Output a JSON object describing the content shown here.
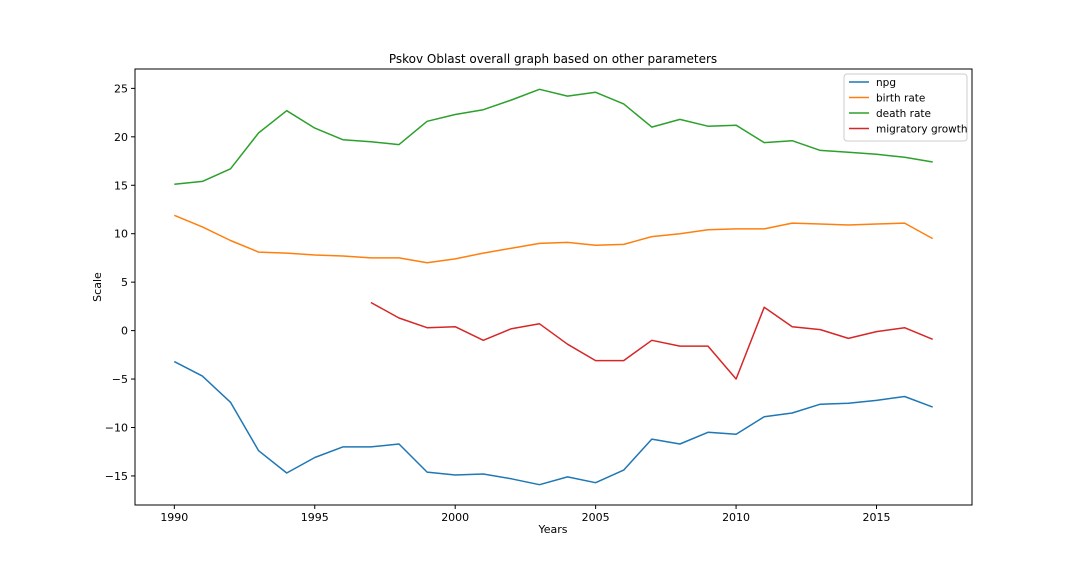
{
  "chart_data": {
    "type": "line",
    "title": "Pskov Oblast overall graph based on other parameters",
    "xlabel": "Years",
    "ylabel": "Scale",
    "xlim": [
      1988.6,
      2018.4
    ],
    "ylim": [
      -18,
      27
    ],
    "xticks": [
      1990,
      1995,
      2000,
      2005,
      2010,
      2015
    ],
    "yticks": [
      -15,
      -10,
      -5,
      0,
      5,
      10,
      15,
      20,
      25
    ],
    "grid": false,
    "legend_position": "top-right",
    "x": [
      1990,
      1991,
      1992,
      1993,
      1994,
      1995,
      1996,
      1997,
      1998,
      1999,
      2000,
      2001,
      2002,
      2003,
      2004,
      2005,
      2006,
      2007,
      2008,
      2009,
      2010,
      2011,
      2012,
      2013,
      2014,
      2015,
      2016,
      2017
    ],
    "series": [
      {
        "name": "npg",
        "color": "#1f77b4",
        "values": [
          -3.2,
          -4.7,
          -7.4,
          -12.4,
          -14.7,
          -13.1,
          -12.0,
          -12.0,
          -11.7,
          -14.6,
          -14.9,
          -14.8,
          -15.3,
          -15.9,
          -15.1,
          -15.7,
          -14.4,
          -11.2,
          -11.7,
          -10.5,
          -10.7,
          -8.9,
          -8.5,
          -7.6,
          -7.5,
          -7.2,
          -6.8,
          -7.9
        ]
      },
      {
        "name": "birth rate",
        "color": "#ff7f0e",
        "values": [
          11.9,
          10.7,
          9.3,
          8.1,
          8.0,
          7.8,
          7.7,
          7.5,
          7.5,
          7.0,
          7.4,
          8.0,
          8.5,
          9.0,
          9.1,
          8.8,
          8.9,
          9.7,
          10.0,
          10.4,
          10.5,
          10.5,
          11.1,
          11.0,
          10.9,
          11.0,
          11.1,
          9.5
        ]
      },
      {
        "name": "death rate",
        "color": "#2ca02c",
        "values": [
          15.1,
          15.4,
          16.7,
          20.4,
          22.7,
          20.9,
          19.7,
          19.5,
          19.2,
          21.6,
          22.3,
          22.8,
          23.8,
          24.9,
          24.2,
          24.6,
          23.4,
          21.0,
          21.8,
          21.1,
          21.2,
          19.4,
          19.6,
          18.6,
          18.4,
          18.2,
          17.9,
          17.4
        ]
      },
      {
        "name": "migratory growth",
        "color": "#d62728",
        "values": [
          null,
          null,
          null,
          null,
          null,
          null,
          null,
          2.9,
          1.3,
          0.3,
          0.4,
          -1.0,
          0.2,
          0.7,
          -1.4,
          -3.1,
          -3.1,
          -1.0,
          -1.6,
          -1.6,
          -5.0,
          2.4,
          0.4,
          0.1,
          -0.8,
          -0.1,
          0.3,
          -0.9
        ]
      }
    ]
  }
}
